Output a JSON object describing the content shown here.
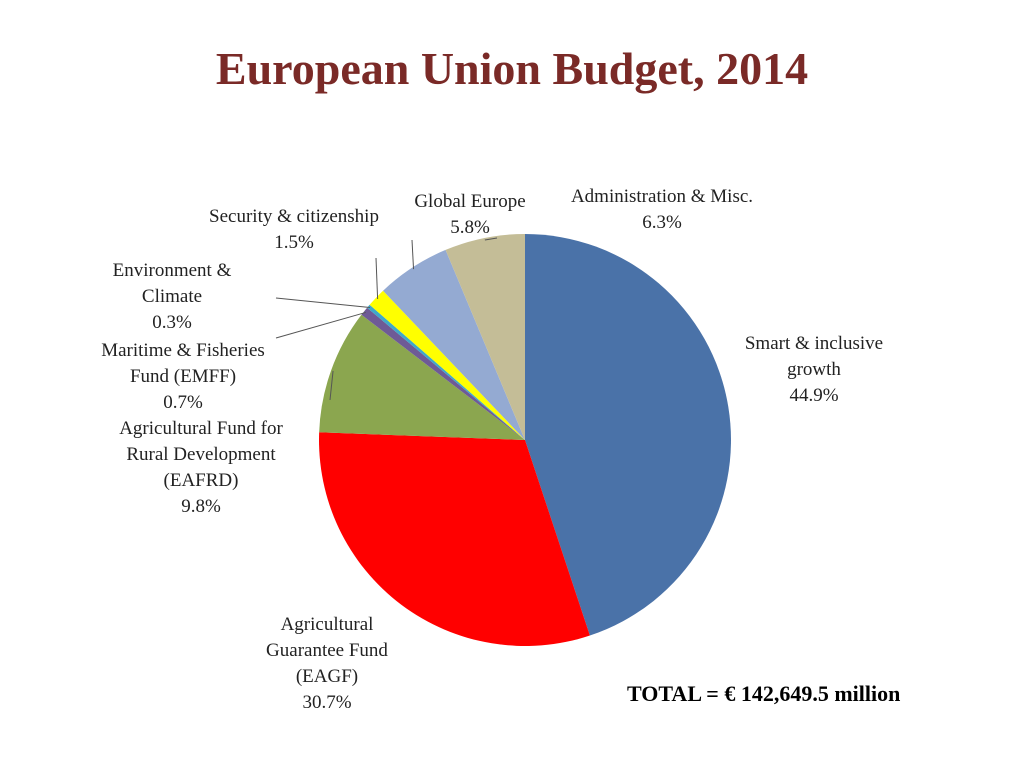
{
  "chart_data": {
    "type": "pie",
    "title": "European Union Budget, 2014",
    "total_label": "TOTAL = € 142,649.5 million",
    "slices": [
      {
        "label": "Smart & inclusive growth",
        "value": 44.9,
        "value_label": "44.9%",
        "color": "#4a72a8"
      },
      {
        "label": "Agricultural Guarantee Fund (EAGF)",
        "value": 30.7,
        "value_label": "30.7%",
        "color": "#ff0000"
      },
      {
        "label": "Agricultural Fund for Rural Development (EAFRD)",
        "value": 9.8,
        "value_label": "9.8%",
        "color": "#8ba64f"
      },
      {
        "label": "Maritime & Fisheries Fund (EMFF)",
        "value": 0.7,
        "value_label": "0.7%",
        "color": "#6e5a96"
      },
      {
        "label": "Environment & Climate",
        "value": 0.3,
        "value_label": "0.3%",
        "color": "#3fa9c9"
      },
      {
        "label": "Security & citizenship",
        "value": 1.5,
        "value_label": "1.5%",
        "color": "#ffff00"
      },
      {
        "label": "Global Europe",
        "value": 5.8,
        "value_label": "5.8%",
        "color": "#94aad2"
      },
      {
        "label": "Administration & Misc.",
        "value": 6.3,
        "value_label": "6.3%",
        "color": "#c4bd97"
      }
    ],
    "label_lines": [
      [
        "Smart & inclusive",
        "growth",
        "44.9%"
      ],
      [
        "Agricultural",
        "Guarantee Fund",
        "(EAGF)",
        "30.7%"
      ],
      [
        "Agricultural Fund for",
        "Rural Development",
        "(EAFRD)",
        "9.8%"
      ],
      [
        "Maritime & Fisheries",
        "Fund (EMFF)",
        "0.7%"
      ],
      [
        "Environment &",
        "Climate",
        "0.3%"
      ],
      [
        "Security & citizenship",
        "1.5%"
      ],
      [
        "Global Europe",
        "5.8%"
      ],
      [
        "Administration & Misc.",
        "6.3%"
      ]
    ]
  }
}
